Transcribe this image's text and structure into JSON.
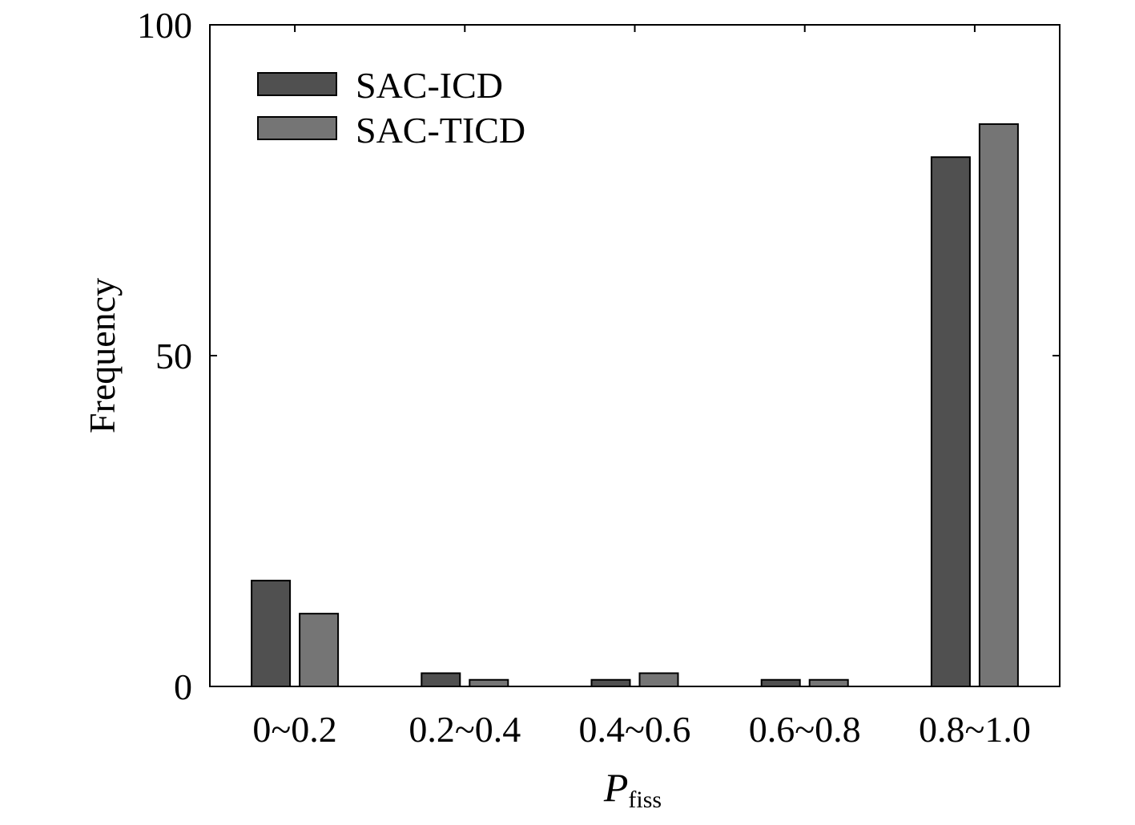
{
  "chart_data": {
    "type": "bar",
    "categories": [
      "0~0.2",
      "0.2~0.4",
      "0.4~0.6",
      "0.6~0.8",
      "0.8~1.0"
    ],
    "series": [
      {
        "name": "SAC-ICD",
        "values": [
          16,
          2,
          1,
          1,
          80
        ],
        "color": "#505050"
      },
      {
        "name": "SAC-TICD",
        "values": [
          11,
          1,
          2,
          1,
          85
        ],
        "color": "#757575"
      }
    ],
    "xlabel_main": "P",
    "xlabel_sub": "fiss",
    "ylabel": "Frequency",
    "ylim": [
      0,
      100
    ],
    "yticks": [
      0,
      50,
      100
    ],
    "legend_position": "top-left",
    "grid": false
  }
}
